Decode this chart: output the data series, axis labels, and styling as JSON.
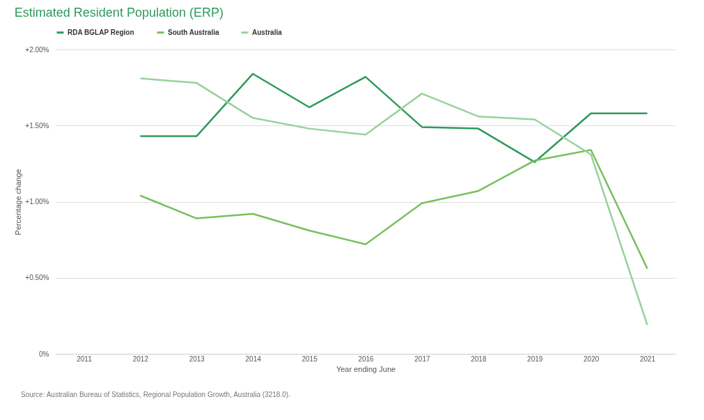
{
  "chart_data": {
    "type": "line",
    "title": "Estimated Resident Population (ERP)",
    "xlabel": "Year ending June",
    "ylabel": "Percentage change",
    "categories": [
      "2011",
      "2012",
      "2013",
      "2014",
      "2015",
      "2016",
      "2017",
      "2018",
      "2019",
      "2020",
      "2021"
    ],
    "series": [
      {
        "name": "RDA BGLAP Region",
        "color": "#2e9a5a",
        "values": [
          null,
          1.43,
          1.43,
          1.84,
          1.62,
          1.82,
          1.49,
          1.48,
          1.26,
          1.58,
          1.58
        ]
      },
      {
        "name": "South Australia",
        "color": "#79bf5f",
        "values": [
          null,
          1.04,
          0.89,
          0.92,
          0.81,
          0.72,
          0.99,
          1.07,
          1.27,
          1.34,
          0.56
        ]
      },
      {
        "name": "Australia",
        "color": "#98d29a",
        "values": [
          null,
          1.81,
          1.78,
          1.55,
          1.48,
          1.44,
          1.71,
          1.56,
          1.54,
          1.31,
          0.19
        ]
      }
    ],
    "ylim": [
      0,
      2
    ],
    "yticks": [
      {
        "value": 0,
        "label": "0%"
      },
      {
        "value": 0.5,
        "label": "+0.50%"
      },
      {
        "value": 1,
        "label": "+1.00%"
      },
      {
        "value": 1.5,
        "label": "+1.50%"
      },
      {
        "value": 2,
        "label": "+2.00%"
      }
    ],
    "grid": "y",
    "legend": "top left",
    "annotations": [
      "Source: Australian Bureau of Statistics, Regional Population Growth, Australia (3218.0)."
    ]
  }
}
